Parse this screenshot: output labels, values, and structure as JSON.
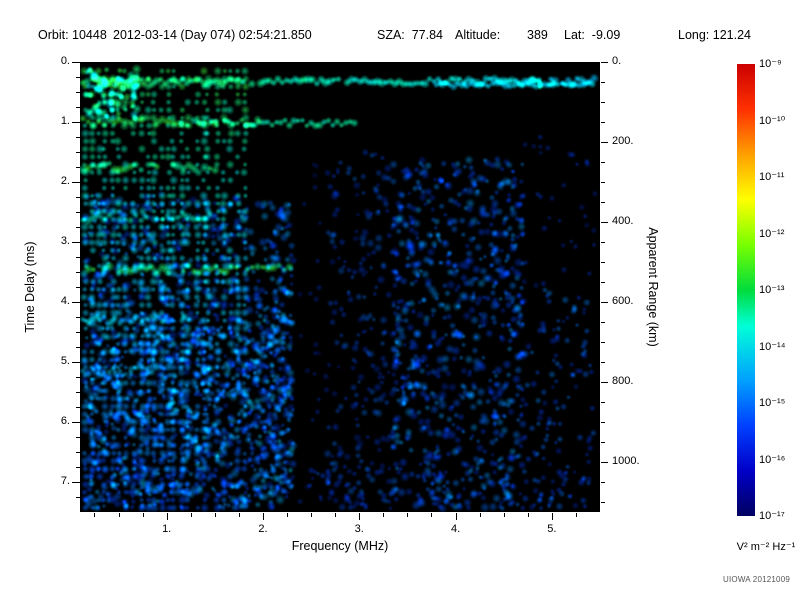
{
  "header": {
    "orbit": "Orbit: 10448",
    "datetime": "2012-03-14 (Day 074) 02:54:21.850",
    "sza": "SZA:  77.84",
    "altitude_label": "Altitude:",
    "altitude_value": "389",
    "lat": "Lat:  -9.09",
    "long": "Long: 121.24"
  },
  "footer": {
    "credit": "UIOWA 20121009"
  },
  "chart_data": {
    "type": "heatmap",
    "xlabel": "Frequency (MHz)",
    "ylabel_left": "Time Delay (ms)",
    "ylabel_right": "Apparent Range (km)",
    "xlim": [
      0.1,
      5.5
    ],
    "ylim": [
      0,
      7.5
    ],
    "x_ticks": [
      {
        "v": 1,
        "label": "1."
      },
      {
        "v": 2,
        "label": "2."
      },
      {
        "v": 3,
        "label": "3."
      },
      {
        "v": 4,
        "label": "4."
      },
      {
        "v": 5,
        "label": "5."
      }
    ],
    "y_ticks_left": [
      {
        "v": 0,
        "label": "0."
      },
      {
        "v": 1,
        "label": "1."
      },
      {
        "v": 2,
        "label": "2."
      },
      {
        "v": 3,
        "label": "3."
      },
      {
        "v": 4,
        "label": "4."
      },
      {
        "v": 5,
        "label": "5."
      },
      {
        "v": 6,
        "label": "6."
      },
      {
        "v": 7,
        "label": "7."
      }
    ],
    "y_ticks_right": [
      {
        "km": 0,
        "label": "0."
      },
      {
        "km": 200,
        "label": "200."
      },
      {
        "km": 400,
        "label": "400."
      },
      {
        "km": 600,
        "label": "600."
      },
      {
        "km": 800,
        "label": "800."
      },
      {
        "km": 1000,
        "label": "1000."
      }
    ],
    "x_minor_step": 0.25,
    "y_minor_step": 0.25,
    "range_minor_step_km": 50,
    "colorbar": {
      "scale": "log",
      "unit": "V² m⁻² Hz⁻¹",
      "tick_labels": [
        "10⁻⁹",
        "10⁻¹⁰",
        "10⁻¹¹",
        "10⁻¹²",
        "10⁻¹³",
        "10⁻¹⁴",
        "10⁻¹⁵",
        "10⁻¹⁶",
        "10⁻¹⁷"
      ],
      "stops": [
        [
          0.0,
          "#000060"
        ],
        [
          0.1,
          "#0000c8"
        ],
        [
          0.2,
          "#0040ff"
        ],
        [
          0.3,
          "#00a0ff"
        ],
        [
          0.42,
          "#00ffd8"
        ],
        [
          0.5,
          "#00dc3c"
        ],
        [
          0.6,
          "#78ff00"
        ],
        [
          0.7,
          "#ffff00"
        ],
        [
          0.8,
          "#ffa000"
        ],
        [
          0.9,
          "#ff3000"
        ],
        [
          1.0,
          "#cc0000"
        ]
      ]
    },
    "render": {
      "seed": 987654321,
      "background": "#000000",
      "colormap": [
        [
          0.0,
          "#000818"
        ],
        [
          0.15,
          "#001c8c"
        ],
        [
          0.28,
          "#0040ff"
        ],
        [
          0.42,
          "#00a8ff"
        ],
        [
          0.52,
          "#00eaff"
        ],
        [
          0.6,
          "#00ffb4"
        ],
        [
          0.68,
          "#2cee3c"
        ],
        [
          0.78,
          "#aaff00"
        ],
        [
          0.88,
          "#ffe800"
        ],
        [
          1.0,
          "#ff3000"
        ]
      ],
      "features": [
        {
          "type": "cloud",
          "f": [
            0.15,
            2.3
          ],
          "t": [
            2.2,
            7.45
          ],
          "n": 950,
          "v": [
            0.2,
            0.45
          ],
          "r": [
            2.5,
            5.5
          ],
          "a": 0.5
        },
        {
          "type": "cloud",
          "f": [
            0.15,
            2.3
          ],
          "t": [
            4.2,
            7.45
          ],
          "n": 480,
          "v": [
            0.24,
            0.5
          ],
          "r": [
            2.5,
            5
          ],
          "a": 0.5
        },
        {
          "type": "cloud",
          "f": [
            1.95,
            2.32
          ],
          "t": [
            3.0,
            7.45
          ],
          "n": 130,
          "v": [
            0.2,
            0.42
          ],
          "r": [
            2.5,
            5
          ],
          "a": 0.5
        },
        {
          "type": "cloud",
          "f": [
            2.38,
            2.62
          ],
          "t": [
            1.2,
            7.45
          ],
          "n": 24,
          "v": [
            0.15,
            0.3
          ],
          "r": [
            2.5,
            4
          ],
          "a": 0.4
        },
        {
          "type": "cloud",
          "f": [
            2.65,
            3.4
          ],
          "t": [
            1.5,
            7.45
          ],
          "n": 230,
          "v": [
            0.18,
            0.36
          ],
          "r": [
            2.5,
            5
          ],
          "a": 0.45
        },
        {
          "type": "cloud",
          "f": [
            3.35,
            4.7
          ],
          "t": [
            1.6,
            7.45
          ],
          "n": 720,
          "v": [
            0.2,
            0.42
          ],
          "r": [
            2.5,
            5.5
          ],
          "a": 0.5
        },
        {
          "type": "cloud",
          "f": [
            4.65,
            5.45
          ],
          "t": [
            3.8,
            7.45
          ],
          "n": 130,
          "v": [
            0.18,
            0.38
          ],
          "r": [
            2.5,
            4.5
          ],
          "a": 0.5
        },
        {
          "type": "cloud",
          "f": [
            4.65,
            5.45
          ],
          "t": [
            1.2,
            3.8
          ],
          "n": 35,
          "v": [
            0.18,
            0.3
          ],
          "r": [
            2.5,
            4
          ],
          "a": 0.45
        },
        {
          "type": "cloud",
          "f": [
            2.3,
            5.4
          ],
          "t": [
            6.8,
            7.45
          ],
          "n": 80,
          "v": [
            0.2,
            0.36
          ],
          "r": [
            2.5,
            4.5
          ],
          "a": 0.5
        },
        {
          "type": "stripes",
          "f": [
            0.13,
            1.85
          ],
          "n": 24,
          "t": [
            0.15,
            7.45
          ],
          "dt": 0.13,
          "vtop": 0.66,
          "vbot": 0.3,
          "gap": 0.3,
          "r": 4,
          "a": 0.6
        },
        {
          "type": "hband",
          "tpos": 1.0,
          "f": [
            0.13,
            1.95
          ],
          "v": 0.66,
          "r": 4.5,
          "a": 0.7
        },
        {
          "type": "hband",
          "tpos": 1.75,
          "f": [
            0.13,
            1.6
          ],
          "v": 0.64,
          "r": 4.5,
          "a": 0.7
        },
        {
          "type": "hband",
          "tpos": 2.6,
          "f": [
            0.13,
            1.55
          ],
          "v": 0.58,
          "r": 4.5,
          "a": 0.65
        },
        {
          "type": "hband",
          "tpos": 3.45,
          "f": [
            0.13,
            2.3
          ],
          "v": 0.64,
          "r": 4.5,
          "a": 0.7
        },
        {
          "type": "hband",
          "tpos": 4.3,
          "f": [
            0.13,
            1.35
          ],
          "v": 0.52,
          "r": 4.5,
          "a": 0.6
        },
        {
          "type": "hband",
          "tpos": 5.15,
          "f": [
            0.13,
            0.9
          ],
          "v": 0.48,
          "r": 4,
          "a": 0.55
        },
        {
          "type": "trace",
          "t": 1.02,
          "f": [
            1.15,
            2.95
          ],
          "v": 0.6,
          "r": 4,
          "a": 0.75,
          "jit": 0.05,
          "skip": 0.1
        },
        {
          "type": "clutter",
          "f": [
            0.13,
            0.7
          ],
          "t": [
            0.12,
            0.95
          ],
          "n": 90,
          "v": [
            0.5,
            0.68
          ],
          "r": [
            3,
            5.5
          ],
          "a": 0.7
        },
        {
          "type": "trace",
          "t": 0.32,
          "f": [
            0.13,
            5.45
          ],
          "v": 0.68,
          "r": 4.5,
          "a": 0.8,
          "jit": 0.05,
          "skip": 0.06,
          "fade": 0.2
        },
        {
          "type": "trace",
          "t": 0.38,
          "f": [
            3.8,
            5.45
          ],
          "v": 0.5,
          "r": 4,
          "a": 0.8,
          "jit": 0.03,
          "skip": 0.02
        },
        {
          "type": "clutter",
          "f": [
            4.78,
            5.02
          ],
          "t": [
            0.28,
            0.5
          ],
          "n": 8,
          "v": [
            0.52,
            0.62
          ],
          "r": [
            3,
            5
          ],
          "a": 0.8
        }
      ]
    }
  }
}
